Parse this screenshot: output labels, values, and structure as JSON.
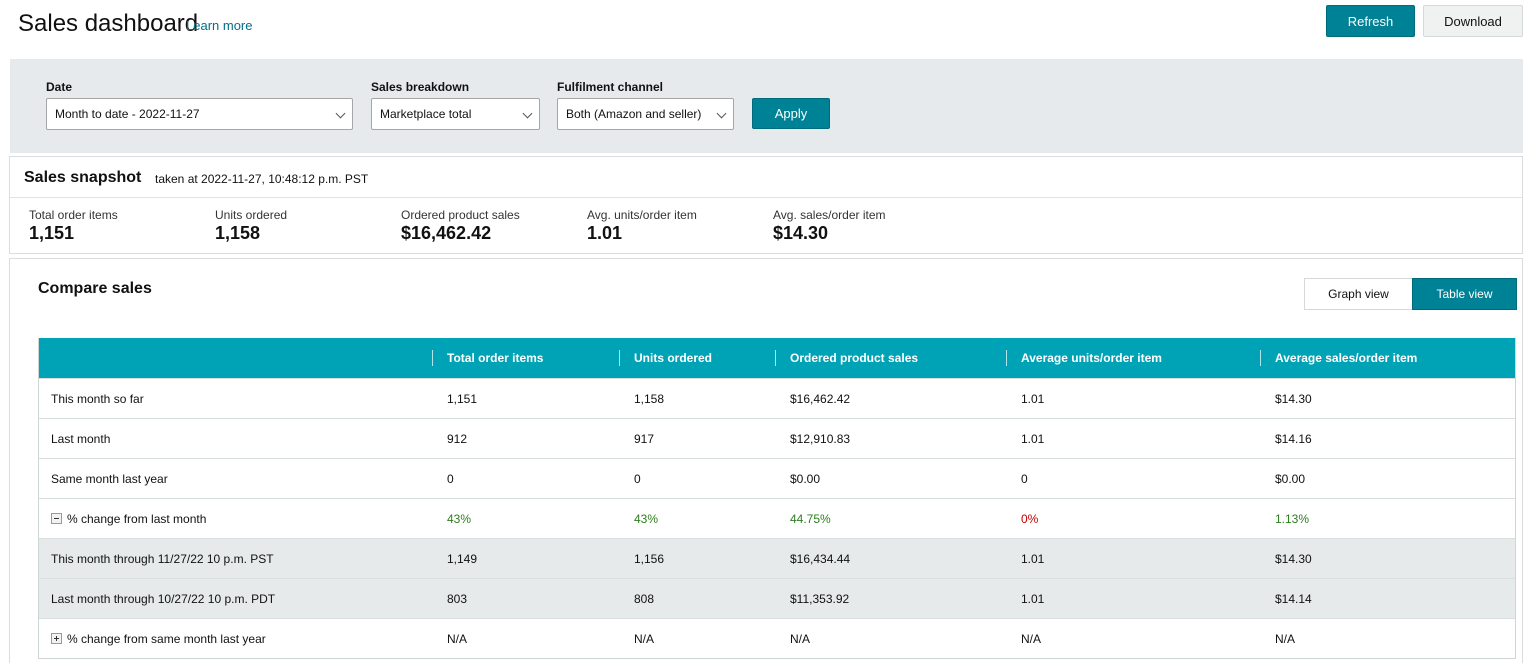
{
  "header": {
    "title": "Sales dashboard",
    "learn_more": "Learn more",
    "refresh_label": "Refresh",
    "download_label": "Download"
  },
  "filters": {
    "date_label": "Date",
    "date_value": "Month to date - 2022-11-27",
    "breakdown_label": "Sales breakdown",
    "breakdown_value": "Marketplace total",
    "channel_label": "Fulfilment channel",
    "channel_value": "Both (Amazon and seller)",
    "apply_label": "Apply"
  },
  "snapshot": {
    "title": "Sales snapshot",
    "taken_at": "taken at 2022-11-27, 10:48:12 p.m. PST",
    "metrics": [
      {
        "label": "Total order items",
        "value": "1,151"
      },
      {
        "label": "Units ordered",
        "value": "1,158"
      },
      {
        "label": "Ordered product sales",
        "value": "$16,462.42"
      },
      {
        "label": "Avg. units/order item",
        "value": "1.01"
      },
      {
        "label": "Avg. sales/order item",
        "value": "$14.30"
      }
    ]
  },
  "compare": {
    "title": "Compare sales",
    "graph_view_label": "Graph view",
    "table_view_label": "Table view",
    "columns": [
      "",
      "Total order items",
      "Units ordered",
      "Ordered product sales",
      "Average units/order item",
      "Average sales/order item"
    ],
    "rows": [
      {
        "label": "This month so far",
        "values": [
          "1,151",
          "1,158",
          "$16,462.42",
          "1.01",
          "$14.30"
        ]
      },
      {
        "label": "Last month",
        "values": [
          "912",
          "917",
          "$12,910.83",
          "1.01",
          "$14.16"
        ]
      },
      {
        "label": "Same month last year",
        "values": [
          "0",
          "0",
          "$0.00",
          "0",
          "$0.00"
        ]
      },
      {
        "label": "% change from last month",
        "values": [
          "43%",
          "43%",
          "44.75%",
          "0%",
          "1.13%"
        ]
      },
      {
        "label": "This month through 11/27/22 10 p.m. PST",
        "values": [
          "1,149",
          "1,156",
          "$16,434.44",
          "1.01",
          "$14.30"
        ]
      },
      {
        "label": "Last month through 10/27/22 10 p.m. PDT",
        "values": [
          "803",
          "808",
          "$11,353.92",
          "1.01",
          "$14.14"
        ]
      },
      {
        "label": "% change from same month last year",
        "values": [
          "N/A",
          "N/A",
          "N/A",
          "N/A",
          "N/A"
        ]
      }
    ]
  },
  "colors": {
    "accent": "#008296",
    "table_header": "#00a3b5",
    "positive": "#2d7d1f",
    "negative": "#c40000",
    "filter_bg": "#e6eaec"
  }
}
